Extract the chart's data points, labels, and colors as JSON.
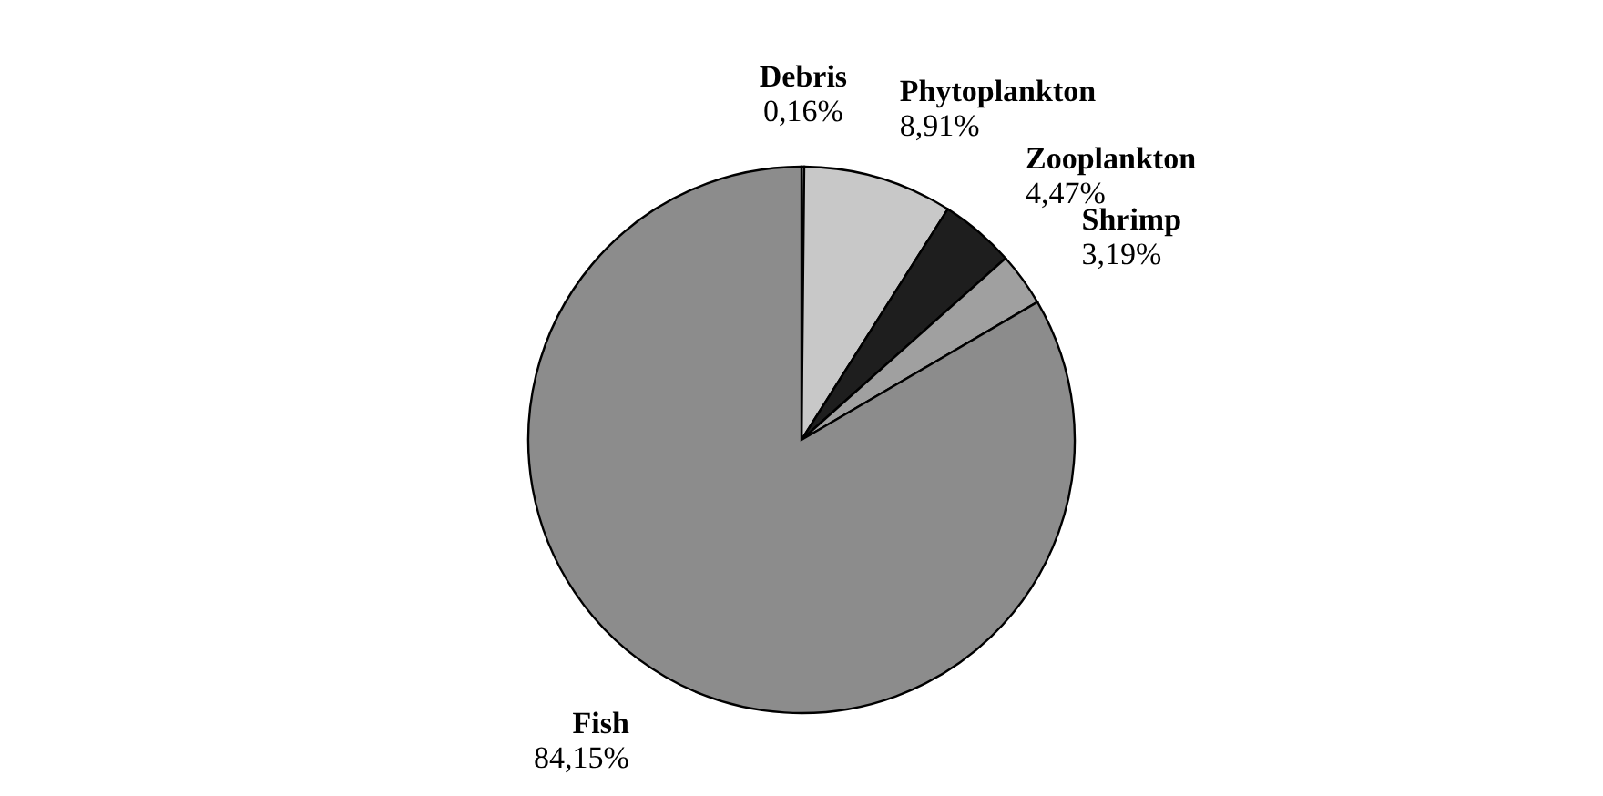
{
  "chart_data": {
    "type": "pie",
    "categories": [
      "Debris",
      "Phytoplankton",
      "Zooplankton",
      "Shrimp",
      "Fish"
    ],
    "values": [
      0.16,
      8.91,
      4.47,
      3.19,
      84.15
    ],
    "value_labels": [
      "0,16%",
      "8,91%",
      "4,47%",
      "3,19%",
      "84,15%"
    ],
    "colors": [
      "#ffffff",
      "#c8c8c8",
      "#1e1e1e",
      "#a0a0a0",
      "#8c8c8c"
    ]
  }
}
